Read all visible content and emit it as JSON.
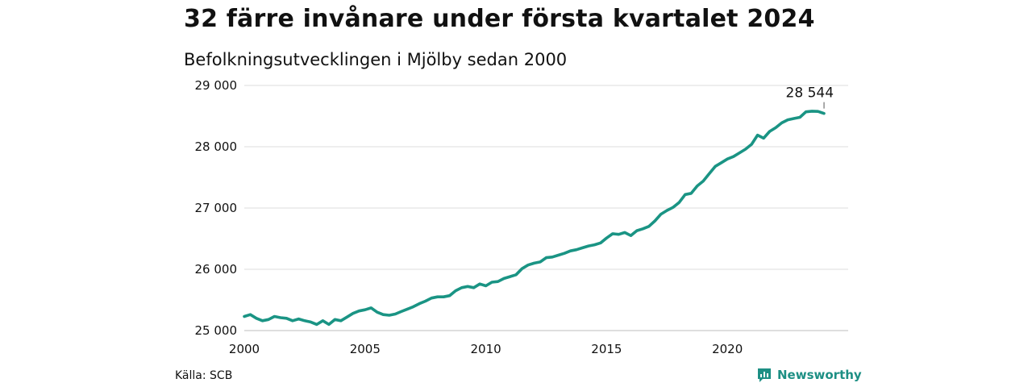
{
  "title": "32 färre invånare under första kvartalet 2024",
  "subtitle": "Befolkningsutvecklingen i Mjölby sedan 2000",
  "source": "Källa: SCB",
  "brand": {
    "name": "Newsworthy",
    "icon": "newsworthy-logo-icon",
    "color": "#1d8f84"
  },
  "chart_data": {
    "type": "line",
    "title": "32 färre invånare under första kvartalet 2024",
    "subtitle": "Befolkningsutvecklingen i Mjölby sedan 2000",
    "xlabel": "",
    "ylabel": "",
    "xlim": [
      2000,
      2025
    ],
    "ylim": [
      25000,
      29000
    ],
    "x_ticks": [
      2000,
      2005,
      2010,
      2015,
      2020
    ],
    "y_ticks": [
      25000,
      26000,
      27000,
      28000,
      29000
    ],
    "x_tick_labels": [
      "2000",
      "2005",
      "2010",
      "2015",
      "2020"
    ],
    "y_tick_labels": [
      "25 000",
      "26 000",
      "27 000",
      "28 000",
      "29 000"
    ],
    "grid": "horizontal",
    "color": "#1a9484",
    "annotation": {
      "x": 2024.0,
      "y": 28544,
      "text": "28 544"
    },
    "series": [
      {
        "values": [
          [
            2000.0,
            25230
          ],
          [
            2000.25,
            25260
          ],
          [
            2000.5,
            25200
          ],
          [
            2000.75,
            25160
          ],
          [
            2001.0,
            25180
          ],
          [
            2001.25,
            25230
          ],
          [
            2001.5,
            25210
          ],
          [
            2001.75,
            25200
          ],
          [
            2002.0,
            25160
          ],
          [
            2002.25,
            25190
          ],
          [
            2002.5,
            25160
          ],
          [
            2002.75,
            25140
          ],
          [
            2003.0,
            25100
          ],
          [
            2003.25,
            25160
          ],
          [
            2003.5,
            25100
          ],
          [
            2003.75,
            25180
          ],
          [
            2004.0,
            25160
          ],
          [
            2004.25,
            25220
          ],
          [
            2004.5,
            25280
          ],
          [
            2004.75,
            25320
          ],
          [
            2005.0,
            25340
          ],
          [
            2005.25,
            25370
          ],
          [
            2005.5,
            25300
          ],
          [
            2005.75,
            25260
          ],
          [
            2006.0,
            25250
          ],
          [
            2006.25,
            25270
          ],
          [
            2006.5,
            25310
          ],
          [
            2006.75,
            25350
          ],
          [
            2007.0,
            25390
          ],
          [
            2007.25,
            25440
          ],
          [
            2007.5,
            25480
          ],
          [
            2007.75,
            25530
          ],
          [
            2008.0,
            25550
          ],
          [
            2008.25,
            25550
          ],
          [
            2008.5,
            25570
          ],
          [
            2008.75,
            25650
          ],
          [
            2009.0,
            25700
          ],
          [
            2009.25,
            25720
          ],
          [
            2009.5,
            25700
          ],
          [
            2009.75,
            25760
          ],
          [
            2010.0,
            25730
          ],
          [
            2010.25,
            25790
          ],
          [
            2010.5,
            25800
          ],
          [
            2010.75,
            25850
          ],
          [
            2011.0,
            25880
          ],
          [
            2011.25,
            25910
          ],
          [
            2011.5,
            26010
          ],
          [
            2011.75,
            26070
          ],
          [
            2012.0,
            26100
          ],
          [
            2012.25,
            26120
          ],
          [
            2012.5,
            26190
          ],
          [
            2012.75,
            26200
          ],
          [
            2013.0,
            26230
          ],
          [
            2013.25,
            26260
          ],
          [
            2013.5,
            26300
          ],
          [
            2013.75,
            26320
          ],
          [
            2014.0,
            26350
          ],
          [
            2014.25,
            26380
          ],
          [
            2014.5,
            26400
          ],
          [
            2014.75,
            26430
          ],
          [
            2015.0,
            26510
          ],
          [
            2015.25,
            26580
          ],
          [
            2015.5,
            26570
          ],
          [
            2015.75,
            26600
          ],
          [
            2016.0,
            26550
          ],
          [
            2016.25,
            26630
          ],
          [
            2016.5,
            26660
          ],
          [
            2016.75,
            26700
          ],
          [
            2017.0,
            26790
          ],
          [
            2017.25,
            26900
          ],
          [
            2017.5,
            26960
          ],
          [
            2017.75,
            27010
          ],
          [
            2018.0,
            27090
          ],
          [
            2018.25,
            27220
          ],
          [
            2018.5,
            27240
          ],
          [
            2018.75,
            27360
          ],
          [
            2019.0,
            27440
          ],
          [
            2019.25,
            27560
          ],
          [
            2019.5,
            27680
          ],
          [
            2019.75,
            27740
          ],
          [
            2020.0,
            27800
          ],
          [
            2020.25,
            27840
          ],
          [
            2020.5,
            27900
          ],
          [
            2020.75,
            27960
          ],
          [
            2021.0,
            28040
          ],
          [
            2021.25,
            28190
          ],
          [
            2021.5,
            28140
          ],
          [
            2021.75,
            28250
          ],
          [
            2022.0,
            28310
          ],
          [
            2022.25,
            28390
          ],
          [
            2022.5,
            28440
          ],
          [
            2022.75,
            28460
          ],
          [
            2023.0,
            28480
          ],
          [
            2023.25,
            28570
          ],
          [
            2023.5,
            28580
          ],
          [
            2023.75,
            28576
          ],
          [
            2024.0,
            28544
          ]
        ]
      }
    ]
  }
}
